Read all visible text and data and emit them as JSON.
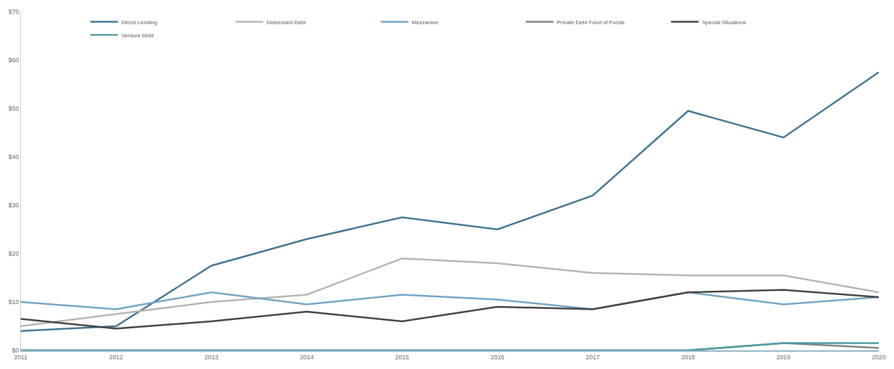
{
  "chart_data": {
    "type": "line",
    "x": [
      2011,
      2012,
      2013,
      2014,
      2015,
      2016,
      2017,
      2018,
      2019,
      2020
    ],
    "xlim": [
      2011,
      2020
    ],
    "xticks": [
      2011,
      2012,
      2013,
      2014,
      2015,
      2016,
      2017,
      2018,
      2019,
      2020
    ],
    "ylim": [
      0,
      70
    ],
    "yticks": [
      {
        "value": 0,
        "label": "$0"
      },
      {
        "value": 10,
        "label": "$10"
      },
      {
        "value": 20,
        "label": "$20"
      },
      {
        "value": 30,
        "label": "$30"
      },
      {
        "value": 40,
        "label": "$40"
      },
      {
        "value": 50,
        "label": "$50"
      },
      {
        "value": 60,
        "label": "$60"
      },
      {
        "value": 70,
        "label": "$70"
      }
    ],
    "grid": false,
    "legend": "top",
    "marker": "none",
    "line_style": "solid",
    "series": [
      {
        "name": "Direct Lending",
        "color": "#3f7391",
        "values": [
          4,
          5,
          17.5,
          23,
          27.5,
          25,
          32,
          49.5,
          44,
          57.5
        ]
      },
      {
        "name": "Distressed Debt",
        "color": "#b3b3b3",
        "values": [
          5,
          7.5,
          10,
          11.5,
          19,
          18,
          16,
          15.5,
          15.5,
          12
        ]
      },
      {
        "name": "Mezzanine",
        "color": "#6fa3c4",
        "values": [
          10,
          8.5,
          12,
          9.5,
          11.5,
          10.5,
          8.5,
          12,
          9.5,
          11
        ]
      },
      {
        "name": "Private Debt Fund of Funds",
        "color": "#7f7f7f",
        "values": [
          0,
          0,
          0,
          0,
          0,
          0,
          0,
          0,
          1.5,
          0.5
        ]
      },
      {
        "name": "Special Situations",
        "color": "#404040",
        "values": [
          6.5,
          4.5,
          6,
          8,
          6,
          9,
          8.5,
          12,
          12.5,
          11
        ]
      },
      {
        "name": "Venture Debt",
        "color": "#4a9aa0",
        "values": [
          0,
          0,
          0,
          0,
          0,
          0,
          0,
          0,
          1.5,
          1.5
        ]
      }
    ]
  }
}
